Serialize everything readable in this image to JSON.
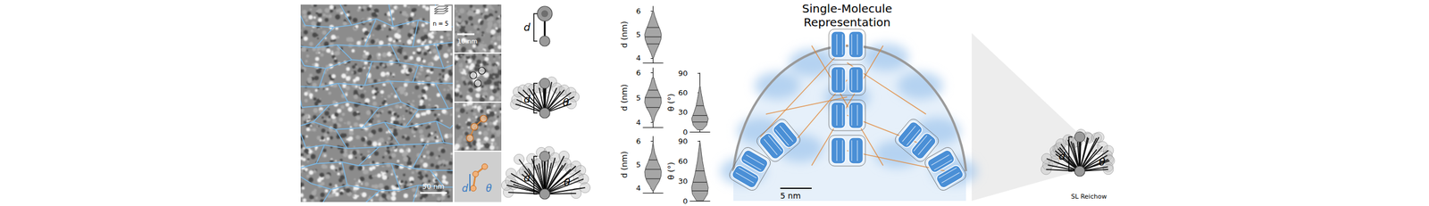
{
  "micrograph": {
    "stack_label": "n = 5",
    "scale_bar": "50 nm"
  },
  "zoom": {
    "scale_bar": "10 nm",
    "labels": [
      "d",
      "θ"
    ]
  },
  "schematics": [
    {
      "labels": [
        "d"
      ]
    },
    {
      "labels": [
        "d",
        "θ"
      ]
    },
    {
      "labels": [
        "d",
        "θ"
      ]
    }
  ],
  "chart_data": [
    {
      "type": "violin",
      "y_label": "d (nm)",
      "ylim": [
        3.8,
        6.2
      ],
      "yticks": [
        4,
        5,
        6
      ],
      "xlim": [
        -1.2,
        1.2
      ],
      "tick_labels": "y",
      "color": "#a6a6a6",
      "profile": {
        "y": [
          4.0,
          4.2,
          4.4,
          4.6,
          4.8,
          5.0,
          5.2,
          5.4,
          5.6,
          5.8,
          6.0
        ],
        "half_width": [
          0.05,
          0.25,
          0.5,
          0.75,
          0.95,
          1.0,
          0.85,
          0.6,
          0.4,
          0.2,
          0.05
        ]
      },
      "quartiles": [
        4.6,
        4.9,
        5.3
      ]
    },
    {
      "type": "violin",
      "y_label": "d (nm)",
      "ylim": [
        3.8,
        6.2
      ],
      "yticks": [
        4,
        5,
        6
      ],
      "xlim": [
        -1.2,
        1.2
      ],
      "tick_labels": "y",
      "color": "#a6a6a6",
      "profile": {
        "y": [
          4.0,
          4.2,
          4.4,
          4.6,
          4.8,
          5.0,
          5.2,
          5.4,
          5.6,
          5.8
        ],
        "half_width": [
          0.05,
          0.2,
          0.45,
          0.8,
          1.0,
          0.95,
          0.7,
          0.45,
          0.25,
          0.1
        ]
      },
      "quartiles": [
        4.6,
        5.0,
        5.3
      ]
    },
    {
      "type": "violin",
      "y_label": "θ (°)",
      "ylim": [
        0,
        90
      ],
      "yticks": [
        0,
        30,
        60,
        90
      ],
      "xlim": [
        -1.2,
        1.2
      ],
      "tick_labels": "y",
      "color": "#a6a6a6",
      "profile": {
        "y": [
          3,
          10,
          20,
          30,
          40,
          50,
          60,
          70
        ],
        "half_width": [
          0.3,
          0.8,
          1.0,
          0.7,
          0.45,
          0.3,
          0.15,
          0.03
        ]
      },
      "quartiles": [
        15,
        25,
        40
      ]
    },
    {
      "type": "violin",
      "y_label": "d (nm)",
      "ylim": [
        3.8,
        6.2
      ],
      "yticks": [
        4,
        5,
        6
      ],
      "xlim": [
        -1.2,
        1.2
      ],
      "tick_labels": "y",
      "color": "#a6a6a6",
      "profile": {
        "y": [
          3.9,
          4.1,
          4.3,
          4.5,
          4.7,
          4.9,
          5.1,
          5.3,
          5.5,
          5.7,
          5.9
        ],
        "half_width": [
          0.1,
          0.4,
          0.75,
          0.95,
          1.0,
          0.85,
          0.6,
          0.4,
          0.2,
          0.1,
          0.03
        ]
      },
      "quartiles": [
        4.4,
        4.8,
        5.2
      ]
    },
    {
      "type": "violin",
      "y_label": "θ (°)",
      "ylim": [
        0,
        90
      ],
      "yticks": [
        0,
        30,
        60,
        90
      ],
      "xlim": [
        -1.2,
        1.2
      ],
      "tick_labels": "y",
      "color": "#a6a6a6",
      "profile": {
        "y": [
          0,
          10,
          20,
          30,
          40,
          50,
          60,
          70,
          80,
          88
        ],
        "half_width": [
          0.4,
          0.9,
          1.0,
          0.8,
          0.6,
          0.45,
          0.3,
          0.2,
          0.1,
          0.02
        ]
      },
      "quartiles": [
        15,
        28,
        45
      ]
    }
  ],
  "model": {
    "title": "Single-Molecule Representation",
    "scale_bar": "5 nm"
  },
  "fan": {
    "labels": [
      "d",
      "θ"
    ]
  },
  "credit": "SL Reichow"
}
